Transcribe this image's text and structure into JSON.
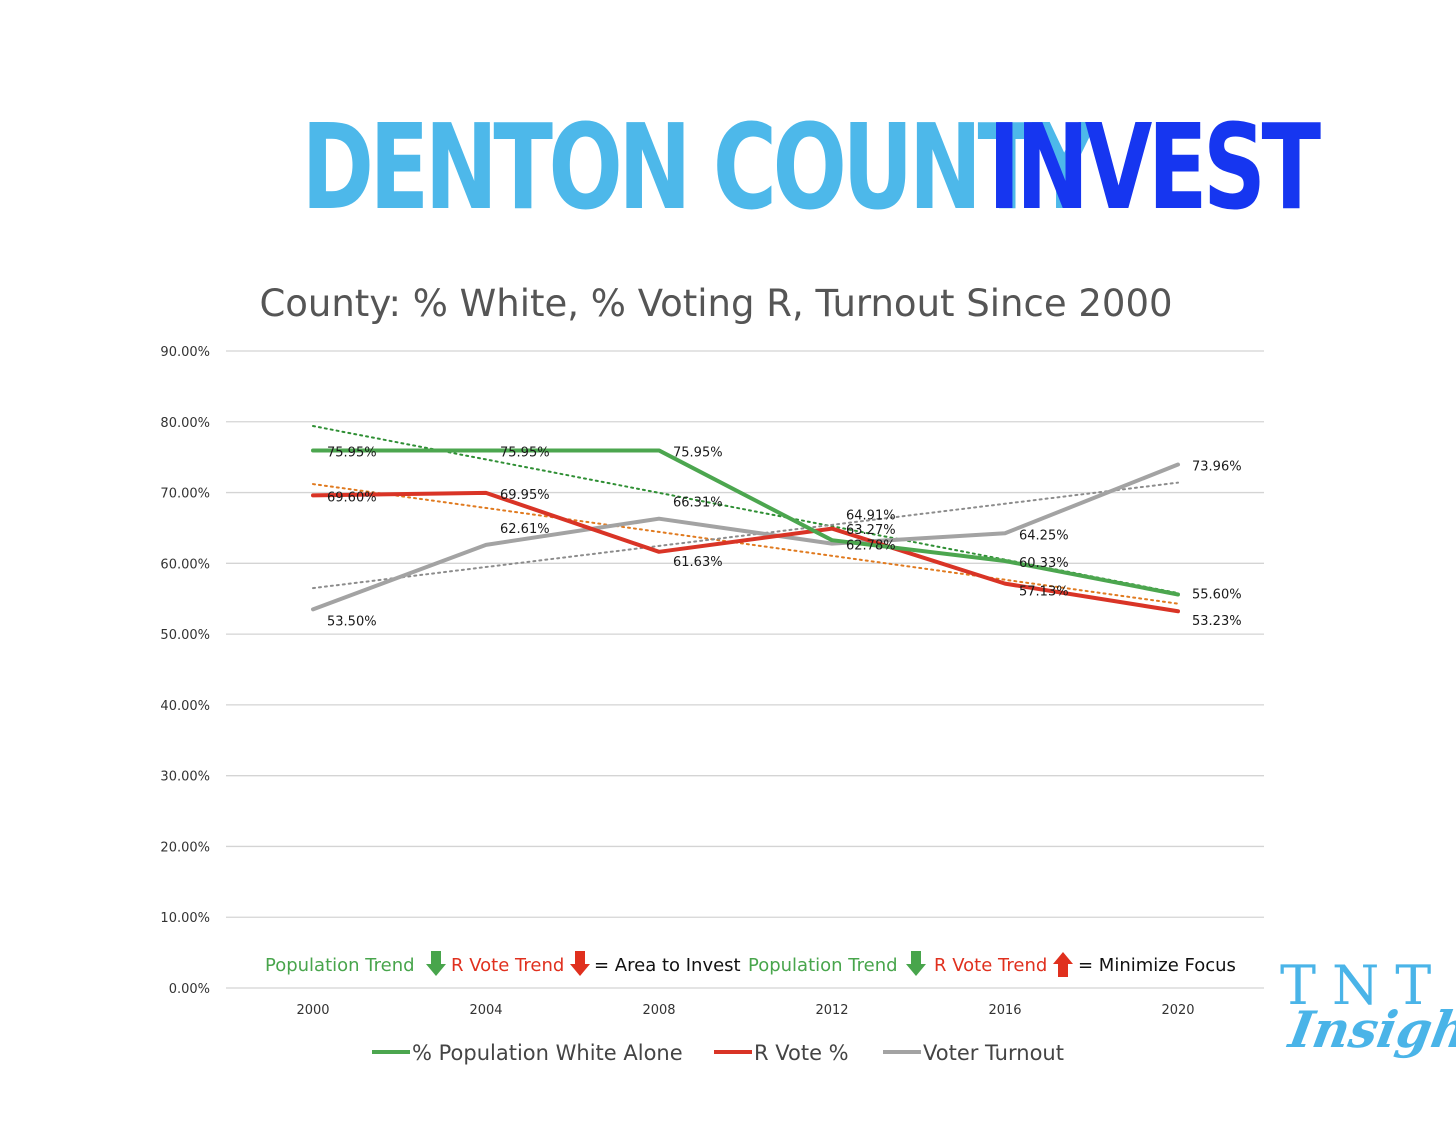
{
  "header": {
    "title_part1": "DENTON COUNTY",
    "title_part2": "INVEST",
    "color_part1": "#4db8ea",
    "color_part2": "#1636f0"
  },
  "logo": {
    "line1": "TNT",
    "line2": "Insights",
    "color": "#4ab4e8"
  },
  "annotation": {
    "left": {
      "population_label": "Population Trend",
      "population_arrow": "down-arrow",
      "vote_label": "R Vote Trend",
      "vote_arrow": "down-arrow",
      "result": "= Area to Invest"
    },
    "right": {
      "population_label": "Population Trend",
      "population_arrow": "down-arrow",
      "vote_label": "R Vote Trend",
      "vote_arrow": "up-arrow",
      "result": "= Minimize Focus"
    },
    "green": "#48a54c",
    "red": "#e0301e"
  },
  "chart_data": {
    "type": "line",
    "title": "County: % White, % Voting R, Turnout Since 2000",
    "categories": [
      "2000",
      "2004",
      "2008",
      "2012",
      "2016",
      "2020"
    ],
    "y_ticks": [
      "0.00%",
      "10.00%",
      "20.00%",
      "30.00%",
      "40.00%",
      "50.00%",
      "60.00%",
      "70.00%",
      "80.00%",
      "90.00%"
    ],
    "ylim": [
      0,
      90
    ],
    "grid": true,
    "legend_position": "bottom",
    "series": [
      {
        "name": "% Population White Alone",
        "values": [
          75.95,
          75.95,
          75.95,
          63.27,
          60.33,
          55.6
        ],
        "labels": [
          "75.95%",
          "75.95%",
          "75.95%",
          "63.27%",
          "60.33%",
          "55.60%"
        ],
        "color": "#4ca64f",
        "trend_color": "#2f8f34",
        "trend": [
          79.4,
          55.8
        ]
      },
      {
        "name": "R Vote %",
        "values": [
          69.6,
          69.95,
          61.63,
          64.91,
          57.13,
          53.23
        ],
        "labels": [
          "69.60%",
          "69.95%",
          "61.63%",
          "64.91%",
          "57.13%",
          "53.23%"
        ],
        "color": "#d93426",
        "trend_color": "#e07a1f",
        "trend": [
          71.2,
          54.3
        ]
      },
      {
        "name": "Voter Turnout",
        "values": [
          53.5,
          62.61,
          66.31,
          62.78,
          64.25,
          73.96
        ],
        "labels": [
          "53.50%",
          "62.61%",
          "66.31%",
          "62.78%",
          "64.25%",
          "73.96%"
        ],
        "color": "#a3a3a3",
        "trend_color": "#8c8c8c",
        "trend": [
          56.5,
          71.4
        ]
      }
    ]
  }
}
